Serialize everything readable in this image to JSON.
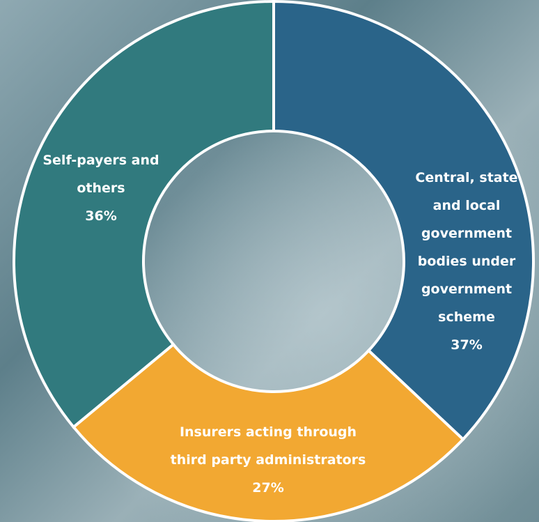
{
  "chart_data": {
    "type": "pie",
    "donut": true,
    "categories": [
      "Central, state and local government bodies under government scheme",
      "Insurers acting through third party administrators",
      "Self-payers and others"
    ],
    "values": [
      37,
      27,
      36
    ],
    "value_labels": [
      "37%",
      "27%",
      "36%"
    ],
    "colors": [
      "#2a6489",
      "#f2a832",
      "#317a7e"
    ]
  }
}
